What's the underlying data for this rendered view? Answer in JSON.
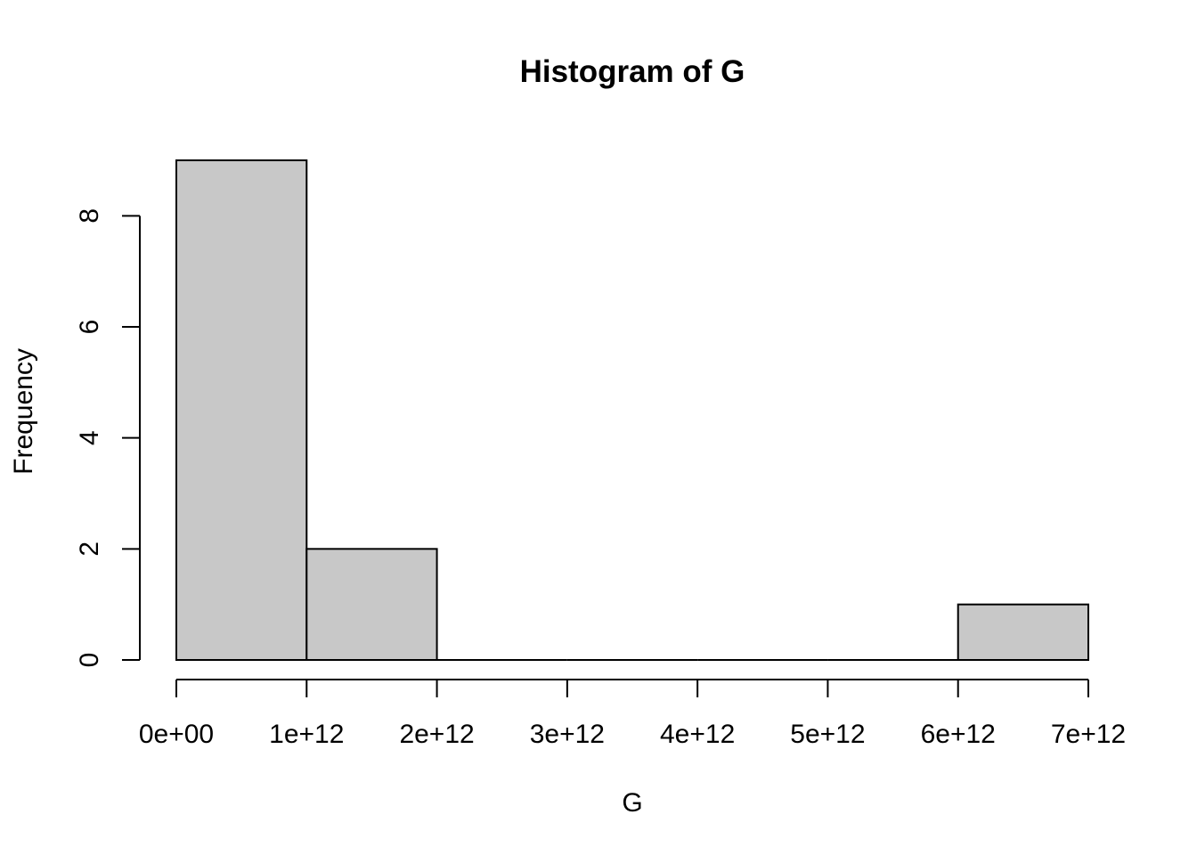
{
  "chart_data": {
    "type": "bar",
    "subtype": "histogram",
    "title": "Histogram of G",
    "xlabel": "G",
    "ylabel": "Frequency",
    "bins": [
      {
        "start": 0,
        "end": 1000000000000,
        "count": 9
      },
      {
        "start": 1000000000000,
        "end": 2000000000000,
        "count": 2
      },
      {
        "start": 2000000000000,
        "end": 3000000000000,
        "count": 0
      },
      {
        "start": 3000000000000,
        "end": 4000000000000,
        "count": 0
      },
      {
        "start": 4000000000000,
        "end": 5000000000000,
        "count": 0
      },
      {
        "start": 5000000000000,
        "end": 6000000000000,
        "count": 0
      },
      {
        "start": 6000000000000,
        "end": 7000000000000,
        "count": 1
      }
    ],
    "xlim": [
      0,
      7000000000000
    ],
    "ylim": [
      0,
      9
    ],
    "x_ticks": [
      {
        "value": 0,
        "label": "0e+00"
      },
      {
        "value": 1000000000000,
        "label": "1e+12"
      },
      {
        "value": 2000000000000,
        "label": "2e+12"
      },
      {
        "value": 3000000000000,
        "label": "3e+12"
      },
      {
        "value": 4000000000000,
        "label": "4e+12"
      },
      {
        "value": 5000000000000,
        "label": "5e+12"
      },
      {
        "value": 6000000000000,
        "label": "6e+12"
      },
      {
        "value": 7000000000000,
        "label": "7e+12"
      }
    ],
    "y_ticks": [
      {
        "value": 0,
        "label": "0"
      },
      {
        "value": 2,
        "label": "2"
      },
      {
        "value": 4,
        "label": "4"
      },
      {
        "value": 6,
        "label": "6"
      },
      {
        "value": 8,
        "label": "8"
      }
    ],
    "grid": false,
    "legend": "none",
    "colors": {
      "bar_fill": "#c8c8c8",
      "bar_stroke": "#000000",
      "axis": "#000000"
    }
  }
}
